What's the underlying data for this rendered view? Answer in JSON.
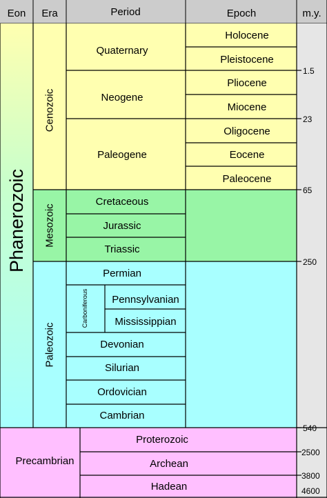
{
  "header": {
    "eon": "Eon",
    "era": "Era",
    "period": "Period",
    "epoch": "Epoch",
    "my": "m.y."
  },
  "eons": {
    "phanerozoic": "Phanerozoic",
    "precambrian": "Precambrian"
  },
  "eras": {
    "cenozoic": "Cenozoic",
    "mesozoic": "Mesozoic",
    "paleozoic": "Paleozoic"
  },
  "periods": {
    "quaternary": "Quaternary",
    "neogene": "Neogene",
    "paleogene": "Paleogene",
    "cretaceous": "Cretaceous",
    "jurassic": "Jurassic",
    "triassic": "Triassic",
    "permian": "Permian",
    "carboniferous": "Carboniferous",
    "pennsylvanian": "Pennsylvanian",
    "mississippian": "Mississippian",
    "devonian": "Devonian",
    "silurian": "Silurian",
    "ordovician": "Ordovician",
    "cambrian": "Cambrian"
  },
  "epochs": {
    "holocene": "Holocene",
    "pleistocene": "Pleistocene",
    "pliocene": "Pliocene",
    "miocene": "Miocene",
    "oligocene": "Oligocene",
    "eocene": "Eocene",
    "paleocene": "Paleocene"
  },
  "precambrian_eons": {
    "proterozoic": "Proterozoic",
    "archean": "Archean",
    "hadean": "Hadean"
  },
  "ages": {
    "a1_5": "1.5",
    "a23": "23",
    "a65": "65",
    "a250": "250",
    "a540": "540",
    "a2500": "2500",
    "a3800": "3800",
    "a4600": "4600"
  },
  "colors": {
    "cenozoic": "#ffffb0",
    "mesozoic": "#98f5a6",
    "paleozoic": "#a8ffff",
    "precambrian": "#ffbfff",
    "header": "#cccccc",
    "my_column": "#e6e6e6"
  }
}
